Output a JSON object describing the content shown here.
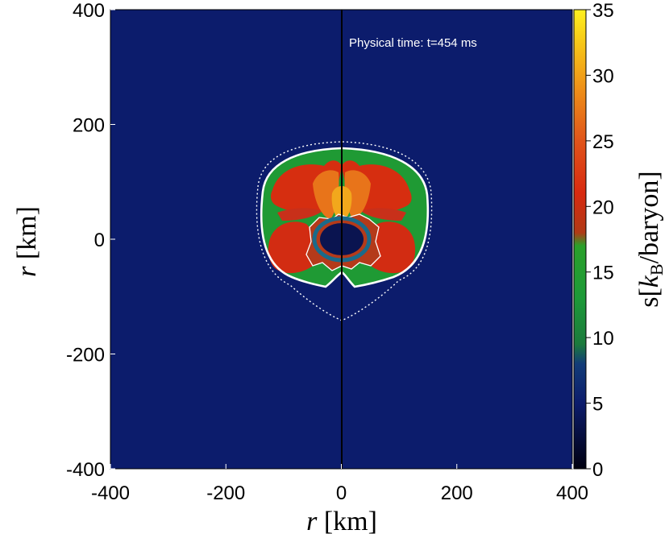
{
  "chart_data": {
    "type": "heatmap",
    "annotation": "Physical time: t=454 ms",
    "xlabel": {
      "var": "r",
      "unit": "[km]"
    },
    "ylabel": {
      "var": "r",
      "unit": "[km]"
    },
    "colorbar_label": {
      "prefix": "s[",
      "var": "k",
      "sub": "B",
      "suffix": "/baryon]"
    },
    "xlim": [
      -400,
      400
    ],
    "ylim": [
      -400,
      400
    ],
    "x_ticks": [
      -400,
      -200,
      0,
      200,
      400
    ],
    "y_ticks": [
      -400,
      -200,
      0,
      200,
      400
    ],
    "colorbar_range": [
      0,
      35
    ],
    "colorbar_ticks": [
      0,
      5,
      10,
      15,
      20,
      25,
      30,
      35
    ],
    "colormap": [
      {
        "value": 0,
        "color": "#000010"
      },
      {
        "value": 5,
        "color": "#0c1c6c"
      },
      {
        "value": 8,
        "color": "#123c78"
      },
      {
        "value": 9.5,
        "color": "#1b7a3c"
      },
      {
        "value": 13,
        "color": "#1d9a38"
      },
      {
        "value": 17,
        "color": "#2aa02a"
      },
      {
        "value": 18,
        "color": "#b03a16"
      },
      {
        "value": 21,
        "color": "#d82a10"
      },
      {
        "value": 25,
        "color": "#e0541a"
      },
      {
        "value": 29,
        "color": "#ee9018"
      },
      {
        "value": 33,
        "color": "#f8d018"
      },
      {
        "value": 35,
        "color": "#fff020"
      }
    ],
    "background_color": "#0c1c6c"
  }
}
